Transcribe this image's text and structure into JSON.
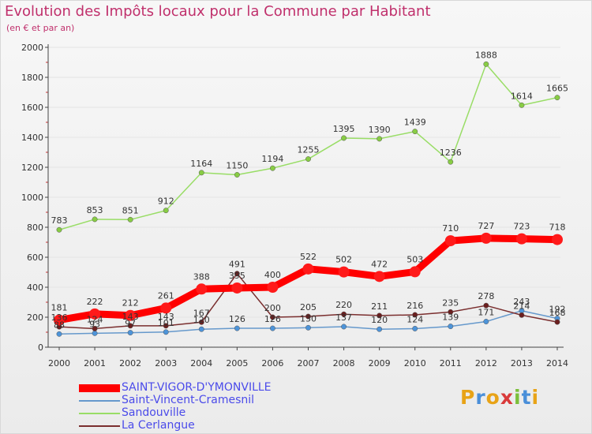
{
  "colors": {
    "title": "#c0306c",
    "axis": "#444444",
    "grid": "#e4e4e4",
    "label": "#333333"
  },
  "chart_data": {
    "type": "line",
    "title": "Evolution des Impôts locaux pour la Commune par Habitant",
    "subtitle": "(en € et par an)",
    "xlabel": "",
    "ylabel": "",
    "x": [
      2000,
      2001,
      2002,
      2003,
      2004,
      2005,
      2006,
      2007,
      2008,
      2009,
      2010,
      2011,
      2012,
      2013,
      2014
    ],
    "ylim": [
      0,
      2000
    ],
    "yticks": [
      0,
      200,
      400,
      600,
      800,
      1000,
      1200,
      1400,
      1600,
      1800,
      2000
    ],
    "grid": true,
    "legend_position": "bottom-left",
    "series": [
      {
        "name": "SAINT-VIGOR-D'YMONVILLE",
        "color": "#ff0000",
        "marker_color": "#ff1a1a",
        "text_color": "#4b4bea",
        "emphasis": true,
        "values": [
          181,
          222,
          212,
          261,
          388,
          395,
          400,
          522,
          502,
          472,
          503,
          710,
          727,
          723,
          718
        ]
      },
      {
        "name": "Saint-Vincent-Cramesnil",
        "color": "#6699cc",
        "marker_color": "#4d94d9",
        "text_color": "#4b4bea",
        "emphasis": false,
        "values": [
          88,
          93,
          97,
          101,
          120,
          126,
          126,
          130,
          137,
          120,
          124,
          139,
          171,
          243,
          192
        ]
      },
      {
        "name": "Sandouville",
        "color": "#99dd66",
        "marker_color": "#88cc44",
        "text_color": "#4b4bea",
        "emphasis": false,
        "values": [
          783,
          853,
          851,
          912,
          1164,
          1150,
          1194,
          1255,
          1395,
          1390,
          1439,
          1236,
          1888,
          1614,
          1665
        ]
      },
      {
        "name": "La Cerlangue",
        "color": "#7a2e2e",
        "marker_color": "#6b1f1f",
        "text_color": "#4b4bea",
        "emphasis": false,
        "values": [
          136,
          124,
          143,
          143,
          167,
          491,
          200,
          205,
          220,
          211,
          216,
          235,
          278,
          214,
          168
        ]
      }
    ]
  },
  "brand": {
    "letters": [
      "P",
      "r",
      "o",
      "x",
      "i",
      "t",
      "i"
    ],
    "colors": [
      "#e8a317",
      "#4a8fd9",
      "#e8a317",
      "#d93a3a",
      "#7bbf3a",
      "#4a8fd9",
      "#e8a317"
    ]
  }
}
